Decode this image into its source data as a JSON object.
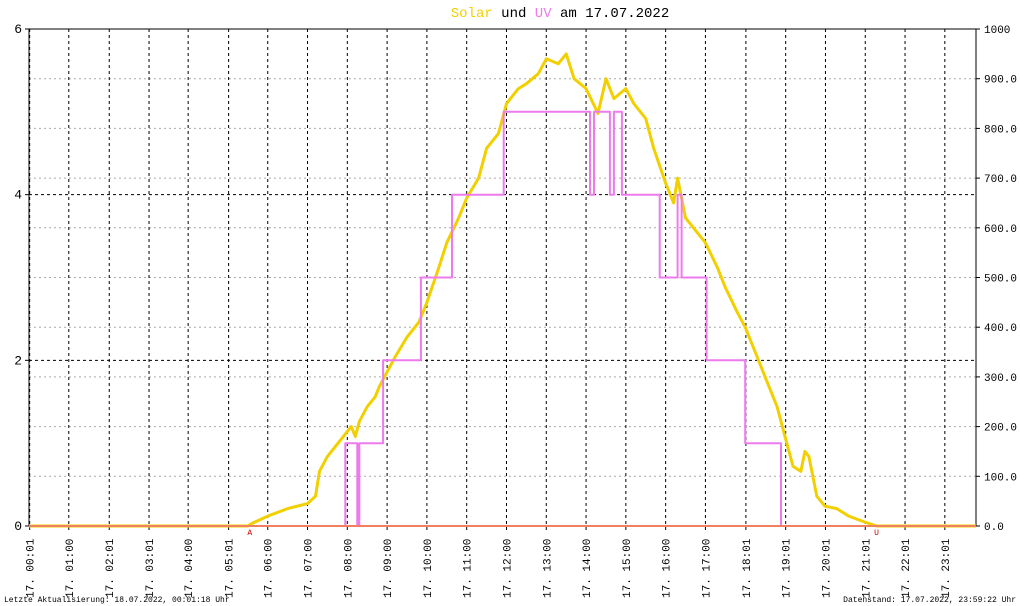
{
  "chart_data": {
    "type": "line",
    "title_connector": "und",
    "title_date": "am 17.07.2022",
    "footer_left": "Letzte Aktualisierung: 18.07.2022, 00:01:18 Uhr",
    "footer_right": "Datenstand: 17.07.2022, 23:59:22 Uhr",
    "xlim": [
      0,
      23.8
    ],
    "xticks": [
      {
        "value": 0.0167,
        "label": "17. 00:01"
      },
      {
        "value": 1,
        "label": "17. 01:00"
      },
      {
        "value": 2.0167,
        "label": "17. 02:01"
      },
      {
        "value": 3.0167,
        "label": "17. 03:01"
      },
      {
        "value": 4,
        "label": "17. 04:00"
      },
      {
        "value": 5.0167,
        "label": "17. 05:01"
      },
      {
        "value": 6,
        "label": "17. 06:00"
      },
      {
        "value": 7,
        "label": "17. 07:00"
      },
      {
        "value": 8,
        "label": "17. 08:00"
      },
      {
        "value": 9,
        "label": "17. 09:00"
      },
      {
        "value": 10,
        "label": "17. 10:00"
      },
      {
        "value": 11,
        "label": "17. 11:00"
      },
      {
        "value": 12,
        "label": "17. 12:00"
      },
      {
        "value": 13,
        "label": "17. 13:00"
      },
      {
        "value": 14,
        "label": "17. 14:00"
      },
      {
        "value": 15,
        "label": "17. 15:00"
      },
      {
        "value": 16,
        "label": "17. 16:00"
      },
      {
        "value": 17,
        "label": "17. 17:00"
      },
      {
        "value": 18.0167,
        "label": "17. 18:01"
      },
      {
        "value": 19.0167,
        "label": "17. 19:01"
      },
      {
        "value": 20.0167,
        "label": "17. 20:01"
      },
      {
        "value": 21.0167,
        "label": "17. 21:01"
      },
      {
        "value": 22.0167,
        "label": "17. 22:01"
      },
      {
        "value": 23.0167,
        "label": "17. 23:01"
      }
    ],
    "ylim": [
      0,
      6
    ],
    "yticks": [
      0,
      2,
      4,
      6
    ],
    "y2lim": [
      0,
      1000
    ],
    "y2ticks": [
      {
        "value": 0,
        "label": "0.0"
      },
      {
        "value": 100,
        "label": "100.0"
      },
      {
        "value": 200,
        "label": "200.0"
      },
      {
        "value": 300,
        "label": "300.0"
      },
      {
        "value": 400,
        "label": "400.0"
      },
      {
        "value": 500,
        "label": "500.0"
      },
      {
        "value": 600,
        "label": "600.0"
      },
      {
        "value": 700,
        "label": "700.0"
      },
      {
        "value": 800,
        "label": "800.0"
      },
      {
        "value": 900,
        "label": "900.0"
      },
      1000
    ],
    "grid": true,
    "annotations": [
      {
        "text": "A",
        "x": 5.55
      },
      {
        "text": "U",
        "x": 21.3
      }
    ],
    "series": [
      {
        "name": "Solar",
        "color": "#f2d000",
        "axis": "y2",
        "x": [
          0,
          5.5,
          5.6,
          6,
          6.5,
          7,
          7.2,
          7.3,
          7.5,
          7.8,
          8,
          8.1,
          8.2,
          8.3,
          8.5,
          8.7,
          8.8,
          9,
          9.2,
          9.5,
          9.8,
          10,
          10.3,
          10.5,
          10.8,
          11,
          11.3,
          11.5,
          11.8,
          12,
          12.3,
          12.5,
          12.8,
          13,
          13.3,
          13.5,
          13.7,
          14,
          14.3,
          14.5,
          14.7,
          15,
          15.2,
          15.5,
          15.7,
          16,
          16.2,
          16.3,
          16.5,
          17,
          17.3,
          17.5,
          17.8,
          18,
          18.3,
          18.5,
          18.8,
          19,
          19.2,
          19.4,
          19.5,
          19.6,
          19.8,
          20,
          20.3,
          20.6,
          21,
          21.3,
          23.8
        ],
        "values": [
          0,
          0,
          5,
          20,
          35,
          45,
          60,
          110,
          140,
          170,
          190,
          200,
          180,
          210,
          240,
          260,
          280,
          310,
          340,
          380,
          410,
          450,
          520,
          570,
          620,
          660,
          700,
          760,
          790,
          850,
          880,
          890,
          910,
          940,
          930,
          950,
          900,
          880,
          830,
          900,
          860,
          880,
          850,
          820,
          760,
          690,
          650,
          700,
          620,
          570,
          520,
          480,
          430,
          400,
          340,
          300,
          240,
          180,
          120,
          110,
          150,
          140,
          60,
          40,
          35,
          20,
          8,
          0,
          0
        ]
      },
      {
        "name": "UV",
        "color": "#ee7aee",
        "axis": "y",
        "x": [
          0,
          7.95,
          7.95,
          8.25,
          8.25,
          8.3,
          8.3,
          8.9,
          8.9,
          9.85,
          9.85,
          10.63,
          10.63,
          11.93,
          11.93,
          14.1,
          14.1,
          14.2,
          14.2,
          14.6,
          14.6,
          14.7,
          14.7,
          14.9,
          14.9,
          15.1,
          15.1,
          15.85,
          15.85,
          16.3,
          16.3,
          16.4,
          16.4,
          17.03,
          17.03,
          18.0,
          18.0,
          18.9,
          18.9,
          23.8
        ],
        "values": [
          0,
          0,
          1,
          1,
          0,
          0,
          1,
          1,
          2,
          2,
          3,
          3,
          4,
          4,
          5,
          5,
          4,
          4,
          5,
          5,
          4,
          4,
          5,
          5,
          4,
          4,
          4,
          4,
          3,
          3,
          4,
          4,
          3,
          3,
          2,
          2,
          1,
          1,
          0,
          0
        ]
      }
    ]
  }
}
